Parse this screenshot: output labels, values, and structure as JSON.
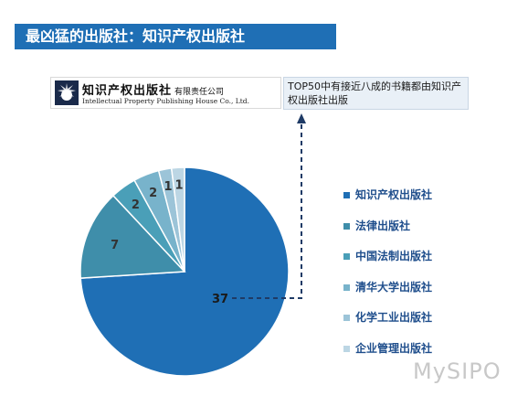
{
  "title": "最凶猛的出版社：知识产权出版社",
  "logo": {
    "name_cn": "知识产权出版社",
    "suffix_cn": "有限责任公司",
    "name_en": "Intellectual Property Publishing House Co., Ltd."
  },
  "note": "TOP50中有接近八成的书籍都由知识产权出版社出版",
  "watermark": "MySIPO",
  "colors": {
    "title_bg": "#1f6fb5",
    "note_bg": "#e9f0f7",
    "legend_text": "#1f4e8c"
  },
  "chart_data": {
    "type": "pie",
    "start_angle_deg": 0,
    "direction": "clockwise",
    "legend_position": "right",
    "slices": [
      {
        "label": "知识产权出版社",
        "value": 37,
        "color": "#1f6fb5"
      },
      {
        "label": "法律出版社",
        "value": 7,
        "color": "#3f8eaa"
      },
      {
        "label": "中国法制出版社",
        "value": 2,
        "color": "#4a9fb8"
      },
      {
        "label": "清华大学出版社",
        "value": 2,
        "color": "#78b3cb"
      },
      {
        "label": "化学工业出版社",
        "value": 1,
        "color": "#9cc4d8"
      },
      {
        "label": "企业管理出版社",
        "value": 1,
        "color": "#bcd6e4"
      }
    ]
  }
}
